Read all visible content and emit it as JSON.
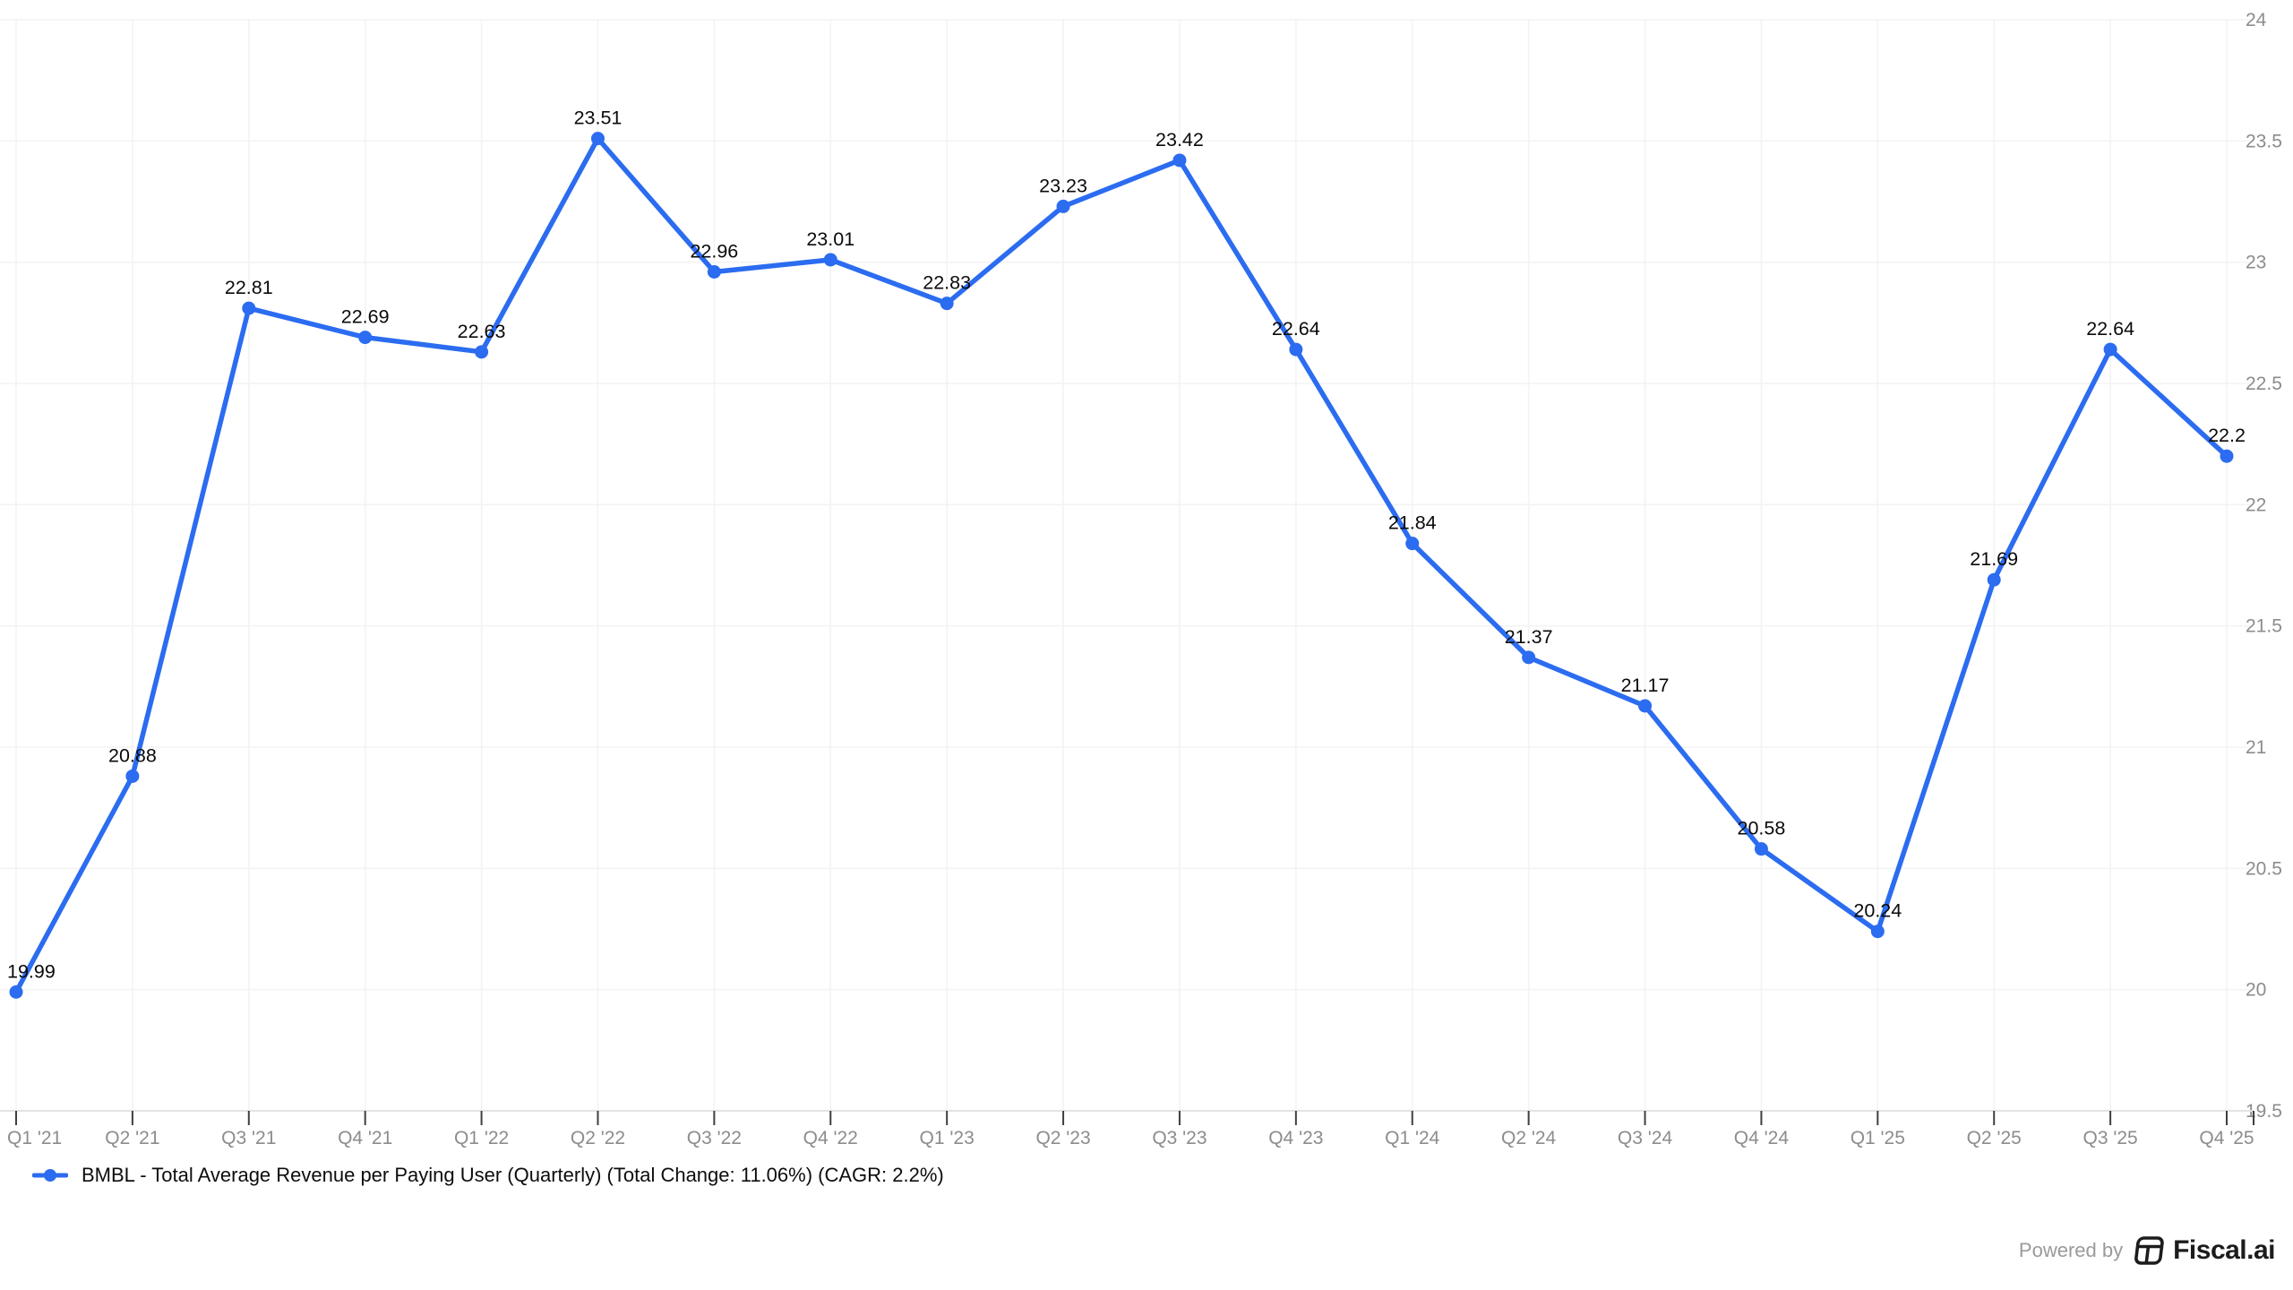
{
  "chart_data": {
    "type": "line",
    "title": "",
    "categories": [
      "Q1 '21",
      "Q2 '21",
      "Q3 '21",
      "Q4 '21",
      "Q1 '22",
      "Q2 '22",
      "Q3 '22",
      "Q4 '22",
      "Q1 '23",
      "Q2 '23",
      "Q3 '23",
      "Q4 '23",
      "Q1 '24",
      "Q2 '24",
      "Q3 '24",
      "Q4 '24",
      "Q1 '25",
      "Q2 '25",
      "Q3 '25",
      "Q4 '25"
    ],
    "series": [
      {
        "name": "BMBL - Total Average Revenue per Paying User (Quarterly) (Total Change: 11.06%) (CAGR: 2.2%)",
        "values": [
          19.99,
          20.88,
          22.81,
          22.69,
          22.63,
          23.51,
          22.96,
          23.01,
          22.83,
          23.23,
          23.42,
          22.64,
          21.84,
          21.37,
          21.17,
          20.58,
          20.24,
          21.69,
          22.64,
          22.2
        ],
        "color": "#2b6cf0"
      }
    ],
    "ylim": [
      19.5,
      24
    ],
    "yticks": [
      24,
      23.5,
      23,
      22.5,
      22,
      21.5,
      21,
      20.5,
      20,
      19.5
    ],
    "grid": true,
    "point_labels": true,
    "legend_position": "bottom-left",
    "y_axis_side": "right"
  },
  "legend": {
    "label": "BMBL - Total Average Revenue per Paying User (Quarterly) (Total Change: 11.06%) (CAGR: 2.2%)"
  },
  "footer": {
    "powered_by": "Powered by",
    "brand": "Fiscal.ai"
  },
  "colors": {
    "line": "#2b6cf0",
    "data_label": "#0a0a0a",
    "axis_label": "#8c8c8c",
    "gridline": "#f3f3f3",
    "axis_line": "#e3e3e3",
    "tick": "#3f3f3f",
    "legend_text": "#0d0d0d",
    "powered_by_text": "#9a9a9a",
    "brand_text": "#1c1c1c"
  }
}
